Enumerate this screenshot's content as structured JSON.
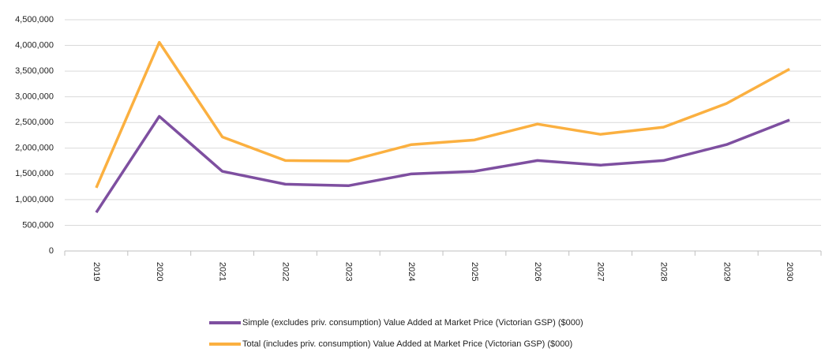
{
  "chart_data": {
    "type": "line",
    "categories": [
      "2019",
      "2020",
      "2021",
      "2022",
      "2023",
      "2024",
      "2025",
      "2026",
      "2027",
      "2028",
      "2029",
      "2030"
    ],
    "series": [
      {
        "name": "Simple (excludes priv. consumption) Value Added at Market Price (Victorian GSP) ($000)",
        "color": "#7e4fa0",
        "values": [
          750000,
          2620000,
          1550000,
          1300000,
          1270000,
          1500000,
          1550000,
          1760000,
          1670000,
          1760000,
          2070000,
          2550000
        ]
      },
      {
        "name": "Total (includes priv. consumption) Value Added at Market Price (Victorian GSP) ($000)",
        "color": "#fbb040",
        "values": [
          1230000,
          4060000,
          2220000,
          1760000,
          1750000,
          2070000,
          2160000,
          2470000,
          2270000,
          2410000,
          2870000,
          3540000
        ]
      }
    ],
    "ylim": [
      0,
      4500000
    ],
    "yticks": [
      0,
      {
        "value": 500000,
        "label": "500,000"
      },
      {
        "value": 1000000,
        "label": "1,000,000"
      },
      {
        "value": 1500000,
        "label": "1,500,000"
      },
      {
        "value": 2000000,
        "label": "2,000,000"
      },
      {
        "value": 2500000,
        "label": "2,500,000"
      },
      {
        "value": 3000000,
        "label": "3,000,000"
      },
      {
        "value": 3500000,
        "label": "3,500,000"
      },
      {
        "value": 4000000,
        "label": "4,000,000"
      },
      {
        "value": 4500000,
        "label": "4,500,000"
      }
    ],
    "grid": true
  }
}
